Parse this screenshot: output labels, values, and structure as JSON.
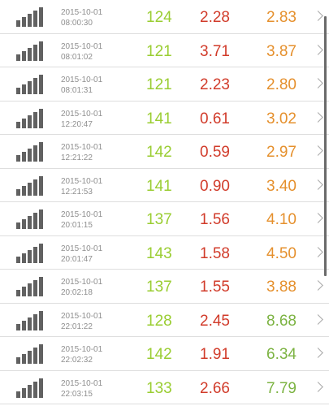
{
  "icons": {
    "signal": "signal-bars-icon",
    "chevron": "chevron-right-icon"
  },
  "colors": {
    "count": "#9acd32",
    "low_value": "#d13b2a",
    "high_value": "#e5902d",
    "high_value_green": "#7cb342"
  },
  "rows": [
    {
      "date": "2015-10-01",
      "time": "08:00:30",
      "count": "124",
      "value1": "2.28",
      "value2": "2.83",
      "value2_color": "#e5902d"
    },
    {
      "date": "2015-10-01",
      "time": "08:01:02",
      "count": "121",
      "value1": "3.71",
      "value2": "3.87",
      "value2_color": "#e5902d"
    },
    {
      "date": "2015-10-01",
      "time": "08:01:31",
      "count": "121",
      "value1": "2.23",
      "value2": "2.80",
      "value2_color": "#e5902d"
    },
    {
      "date": "2015-10-01",
      "time": "12:20:47",
      "count": "141",
      "value1": "0.61",
      "value2": "3.02",
      "value2_color": "#e5902d"
    },
    {
      "date": "2015-10-01",
      "time": "12:21:22",
      "count": "142",
      "value1": "0.59",
      "value2": "2.97",
      "value2_color": "#e5902d"
    },
    {
      "date": "2015-10-01",
      "time": "12:21:53",
      "count": "141",
      "value1": "0.90",
      "value2": "3.40",
      "value2_color": "#e5902d"
    },
    {
      "date": "2015-10-01",
      "time": "20:01:15",
      "count": "137",
      "value1": "1.56",
      "value2": "4.10",
      "value2_color": "#e5902d"
    },
    {
      "date": "2015-10-01",
      "time": "20:01:47",
      "count": "143",
      "value1": "1.58",
      "value2": "4.50",
      "value2_color": "#e5902d"
    },
    {
      "date": "2015-10-01",
      "time": "20:02:18",
      "count": "137",
      "value1": "1.55",
      "value2": "3.88",
      "value2_color": "#e5902d"
    },
    {
      "date": "2015-10-01",
      "time": "22:01:22",
      "count": "128",
      "value1": "2.45",
      "value2": "8.68",
      "value2_color": "#7cb342"
    },
    {
      "date": "2015-10-01",
      "time": "22:02:32",
      "count": "142",
      "value1": "1.91",
      "value2": "6.34",
      "value2_color": "#7cb342"
    },
    {
      "date": "2015-10-01",
      "time": "22:03:15",
      "count": "133",
      "value1": "2.66",
      "value2": "7.79",
      "value2_color": "#7cb342"
    }
  ]
}
